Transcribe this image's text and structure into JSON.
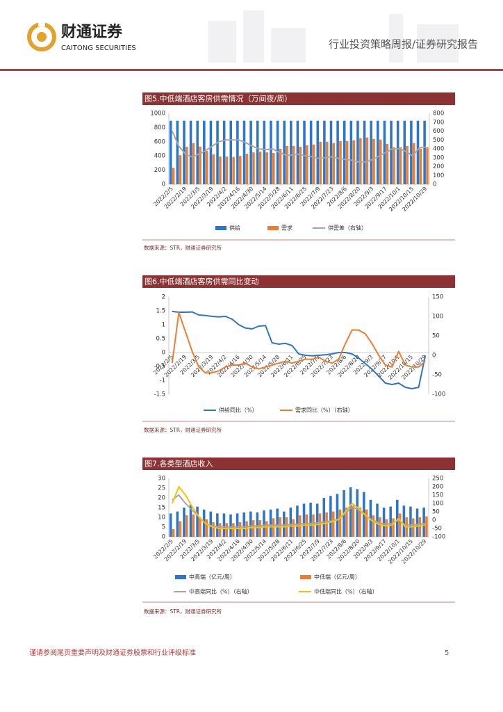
{
  "header": {
    "brand": "财通证券",
    "brand_en": "CAITONG SECURITIES",
    "report_type": "行业投资策略周报/证券研究报告"
  },
  "chart_data": [
    {
      "type": "combo",
      "title": "图5.中低端酒店客房供需情况（万间夜/周）",
      "source": "数据来源：STR，财通证券研究所",
      "categories": [
        "2022/2/5",
        null,
        "2022/2/19",
        null,
        "2022/3/5",
        null,
        "2022/3/19",
        null,
        "2022/4/2",
        null,
        "2022/4/16",
        null,
        "2022/4/30",
        null,
        "2022/5/14",
        null,
        "2022/5/28",
        null,
        "2022/6/11",
        null,
        "2022/6/25",
        null,
        "2022/7/9",
        null,
        "2022/7/23",
        null,
        "2022/8/6",
        null,
        "2022/8/20",
        null,
        "2022/9/3",
        null,
        "2022/9/17",
        null,
        "2022/10/1",
        null,
        "2022/10/15",
        null,
        "2022/10/29"
      ],
      "ylim": [
        0,
        1000
      ],
      "yticks": [
        0,
        200,
        400,
        600,
        800,
        1000
      ],
      "y2lim": [
        0,
        800
      ],
      "y2ticks": [
        0,
        100,
        200,
        300,
        400,
        500,
        600,
        700,
        800
      ],
      "grid": false,
      "series": [
        {
          "name": "供给",
          "type": "bar",
          "color": "#2e75c8",
          "values": [
            895,
            895,
            895,
            895,
            895,
            895,
            895,
            895,
            895,
            895,
            895,
            895,
            895,
            895,
            895,
            895,
            895,
            895,
            895,
            895,
            895,
            895,
            895,
            895,
            895,
            895,
            895,
            895,
            895,
            895,
            895,
            895,
            895,
            895,
            895,
            895,
            895,
            895,
            895
          ]
        },
        {
          "name": "需求",
          "type": "bar",
          "color": "#ed7d31",
          "values": [
            230,
            410,
            530,
            580,
            530,
            470,
            420,
            390,
            390,
            385,
            400,
            430,
            450,
            460,
            450,
            440,
            500,
            540,
            540,
            530,
            550,
            560,
            600,
            600,
            580,
            610,
            610,
            620,
            650,
            660,
            640,
            630,
            570,
            520,
            520,
            540,
            580,
            500,
            520
          ]
        },
        {
          "name": "供需差（右轴）",
          "type": "line",
          "axis": "y2",
          "color": "#a5a5a5",
          "values": [
            600,
            430,
            340,
            310,
            340,
            380,
            430,
            480,
            500,
            500,
            500,
            470,
            430,
            400,
            390,
            400,
            360,
            330,
            330,
            340,
            320,
            310,
            290,
            300,
            310,
            290,
            280,
            270,
            250,
            250,
            280,
            320,
            360,
            400,
            400,
            370,
            320,
            410,
            420
          ]
        }
      ]
    },
    {
      "type": "line",
      "title": "图6.中低端酒店客房供需同比变动",
      "source": "数据来源：STR，财通证券研究所",
      "categories": [
        "2022/2/5",
        null,
        "2022/2/19",
        null,
        "2022/3/5",
        null,
        "2022/3/19",
        null,
        "2022/4/2",
        null,
        "2022/4/16",
        null,
        "2022/4/30",
        null,
        "2022/5/14",
        null,
        "2022/5/28",
        null,
        "2022/6/11",
        null,
        "2022/6/25",
        null,
        "2022/7/9",
        null,
        "2022/7/23",
        null,
        "2022/8/6",
        null,
        "2022/8/20",
        null,
        "2022/9/3",
        null,
        "2022/9/17",
        null,
        "2022/10/1",
        null,
        "2022/10/15",
        null,
        "2022/10/29"
      ],
      "ylim": [
        -1.5,
        2
      ],
      "yticks": [
        -1.5,
        -1,
        -0.5,
        0,
        0.5,
        1,
        1.5,
        2
      ],
      "y2lim": [
        -100,
        150
      ],
      "y2ticks": [
        -100,
        -50,
        0,
        50,
        100,
        150
      ],
      "grid": false,
      "series": [
        {
          "name": "供给同比（%）",
          "type": "line",
          "color": "#2e75c8",
          "values": [
            1.48,
            1.45,
            1.45,
            1.46,
            1.35,
            1.33,
            1.3,
            1.28,
            1.3,
            1.2,
            1.0,
            0.88,
            0.85,
            0.95,
            0.97,
            0.35,
            0.3,
            0.33,
            0.25,
            -0.05,
            -0.1,
            -0.12,
            -0.1,
            -0.08,
            -0.05,
            0.0,
            0.0,
            -0.05,
            -0.2,
            -0.4,
            -0.6,
            -0.85,
            -1.1,
            -1.15,
            -1.1,
            -1.25,
            -1.3,
            -1.25,
            -0.1
          ]
        },
        {
          "name": "需求同比（%）（右轴）",
          "type": "line",
          "axis": "y2",
          "color": "#ed7d31",
          "values": [
            -20,
            110,
            60,
            10,
            -30,
            -45,
            -45,
            -40,
            -30,
            -25,
            -25,
            -20,
            -30,
            -35,
            -30,
            -25,
            -20,
            -15,
            -20,
            -15,
            -10,
            -10,
            -5,
            -15,
            -20,
            -10,
            30,
            65,
            65,
            55,
            30,
            0,
            -25,
            -30,
            10,
            -25,
            -30,
            -30,
            -15
          ]
        }
      ]
    },
    {
      "type": "combo",
      "title": "图7.各类型酒店收入",
      "source": "数据来源：STR，财通证券研究所",
      "categories": [
        "2022/2/5",
        null,
        "2022/2/19",
        null,
        "2022/3/5",
        null,
        "2022/3/19",
        null,
        "2022/4/2",
        null,
        "2022/4/16",
        null,
        "2022/4/30",
        null,
        "2022/5/14",
        null,
        "2022/5/28",
        null,
        "2022/6/11",
        null,
        "2022/6/25",
        null,
        "2022/7/9",
        null,
        "2022/7/23",
        null,
        "2022/8/6",
        null,
        "2022/8/20",
        null,
        "2022/9/3",
        null,
        "2022/9/17",
        null,
        "2022/10/1",
        null,
        "2022/10/15",
        null,
        "2022/10/29"
      ],
      "ylim": [
        0,
        30
      ],
      "yticks": [
        0,
        5,
        10,
        15,
        20,
        25,
        30
      ],
      "y2lim": [
        -100,
        250
      ],
      "y2ticks": [
        -100,
        -50,
        0,
        50,
        100,
        150,
        200,
        250
      ],
      "grid": false,
      "series": [
        {
          "name": "中高端（亿元/周）",
          "type": "bar",
          "color": "#2e75c8",
          "values": [
            12,
            13,
            15,
            16.5,
            15.5,
            14,
            13,
            12,
            12,
            11.5,
            12,
            12.5,
            13,
            12.5,
            13.5,
            14,
            14.5,
            13,
            15,
            16,
            17,
            17.5,
            17,
            20,
            21,
            22,
            24,
            25.5,
            24.5,
            23,
            19,
            17,
            15,
            15.5,
            19,
            16,
            15.5,
            14.5,
            15
          ]
        },
        {
          "name": "中低端（亿元/周）",
          "type": "bar",
          "color": "#ed7d31",
          "values": [
            4,
            8,
            11,
            11.5,
            10,
            9,
            7.5,
            7,
            7,
            7,
            7.5,
            8,
            8.5,
            8.5,
            8,
            9.5,
            10,
            10,
            9,
            11,
            11.5,
            11.5,
            12,
            12.5,
            13,
            14,
            15,
            16,
            15,
            14,
            11,
            10,
            9,
            9.5,
            12,
            10,
            9.5,
            10,
            10.5
          ]
        },
        {
          "name": "中高端同比（%）（右轴）",
          "type": "line",
          "axis": "y2",
          "color": "#a5a5a5",
          "values": [
            120,
            150,
            100,
            60,
            20,
            -20,
            -35,
            -40,
            -40,
            -40,
            -40,
            -40,
            -35,
            -35,
            -30,
            -30,
            -30,
            -30,
            -25,
            -25,
            -20,
            -20,
            -15,
            -10,
            -5,
            5,
            40,
            80,
            60,
            30,
            0,
            -15,
            -25,
            -20,
            0,
            -30,
            -30,
            -25,
            -20
          ]
        },
        {
          "name": "中低端同比（%）（右轴）",
          "type": "line",
          "axis": "y2",
          "color": "#ffc000",
          "values": [
            100,
            200,
            150,
            80,
            20,
            -20,
            -40,
            -50,
            -50,
            -50,
            -50,
            -50,
            -45,
            -45,
            -40,
            -40,
            -40,
            -40,
            -35,
            -35,
            -30,
            -30,
            -25,
            -20,
            -10,
            5,
            50,
            100,
            70,
            30,
            -5,
            -25,
            -35,
            -30,
            10,
            -40,
            -40,
            -35,
            -30
          ]
        }
      ]
    }
  ],
  "footer": {
    "disclaimer": "谨请参阅尾页重要声明及财通证券股票和行业评级标准",
    "page": 5
  }
}
